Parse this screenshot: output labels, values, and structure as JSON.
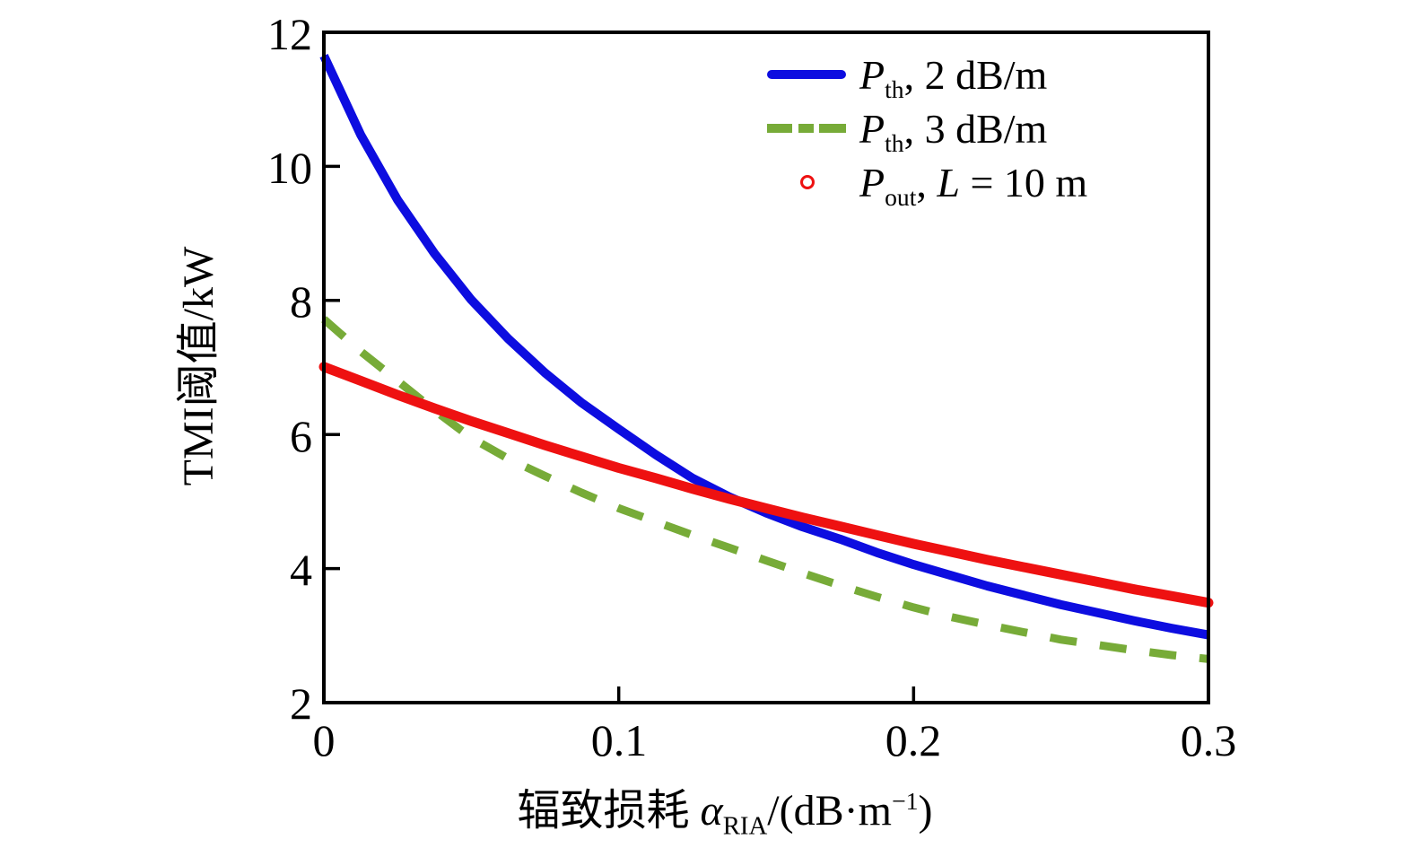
{
  "page": {
    "background": "#ffffff"
  },
  "chart_data": {
    "type": "line",
    "title": "",
    "ylabel": "TMI阈值/kW",
    "xlabel_parts": {
      "prefix": "辐致损耗 ",
      "alpha_symbol": "α",
      "alpha_subscript": "RIA",
      "unit_open": "/(dB·m",
      "unit_exponent": "−1",
      "unit_close": ")"
    },
    "xlim": [
      0,
      0.3
    ],
    "ylim": [
      2,
      12
    ],
    "grid": false,
    "frame": "full-box",
    "frame_color": "#000000",
    "x_ticks": [
      0,
      0.1,
      0.2,
      0.3
    ],
    "x_tick_labels": [
      "0",
      "0.1",
      "0.2",
      "0.3"
    ],
    "y_ticks": [
      12,
      10,
      8,
      6,
      4,
      2
    ],
    "y_tick_labels": [
      "12",
      "10",
      "8",
      "6",
      "4",
      "2"
    ],
    "x": [
      0,
      0.0125,
      0.025,
      0.0375,
      0.05,
      0.0625,
      0.075,
      0.0875,
      0.1,
      0.1125,
      0.125,
      0.1375,
      0.15,
      0.1625,
      0.175,
      0.1875,
      0.2,
      0.2125,
      0.225,
      0.2375,
      0.25,
      0.2625,
      0.275,
      0.2875,
      0.3
    ],
    "series": [
      {
        "name": "Pth, 2 dB/m",
        "color": "#0d0de0",
        "line_style": "solid",
        "line_width": 10,
        "values": [
          11.65,
          10.47,
          9.5,
          8.7,
          8.01,
          7.43,
          6.92,
          6.47,
          6.08,
          5.7,
          5.35,
          5.07,
          4.83,
          4.62,
          4.44,
          4.24,
          4.06,
          3.9,
          3.74,
          3.6,
          3.46,
          3.34,
          3.22,
          3.11,
          3.01
        ]
      },
      {
        "name": "Pth, 3 dB/m",
        "color": "#77ab38",
        "line_style": "dashed",
        "dash_pattern": [
          30,
          26
        ],
        "line_width": 9,
        "values": [
          7.72,
          7.24,
          6.8,
          6.36,
          5.95,
          5.64,
          5.38,
          5.13,
          4.9,
          4.7,
          4.5,
          4.31,
          4.12,
          3.93,
          3.75,
          3.58,
          3.42,
          3.28,
          3.16,
          3.05,
          2.94,
          2.86,
          2.78,
          2.71,
          2.65
        ]
      },
      {
        "name": "Pout, L = 10 m",
        "color": "#ee1111",
        "line_style": "dense-circle-markers",
        "line_width": 11,
        "values": [
          7.01,
          6.8,
          6.59,
          6.39,
          6.2,
          6.02,
          5.84,
          5.67,
          5.5,
          5.35,
          5.19,
          5.04,
          4.9,
          4.76,
          4.63,
          4.5,
          4.37,
          4.25,
          4.13,
          4.02,
          3.91,
          3.8,
          3.69,
          3.59,
          3.49
        ]
      }
    ],
    "legend": {
      "position": "upper-right",
      "items": [
        {
          "swatch": "solid-line",
          "variable": "P",
          "subscript": "th",
          "separator": ", ",
          "variable2": "",
          "text": "2 dB/m"
        },
        {
          "swatch": "dash-line",
          "variable": "P",
          "subscript": "th",
          "separator": ", ",
          "variable2": "",
          "text": "3 dB/m"
        },
        {
          "swatch": "open-circle",
          "variable": "P",
          "subscript": "out",
          "separator": ", ",
          "variable2": "L",
          "text": " = 10 m"
        }
      ]
    }
  }
}
